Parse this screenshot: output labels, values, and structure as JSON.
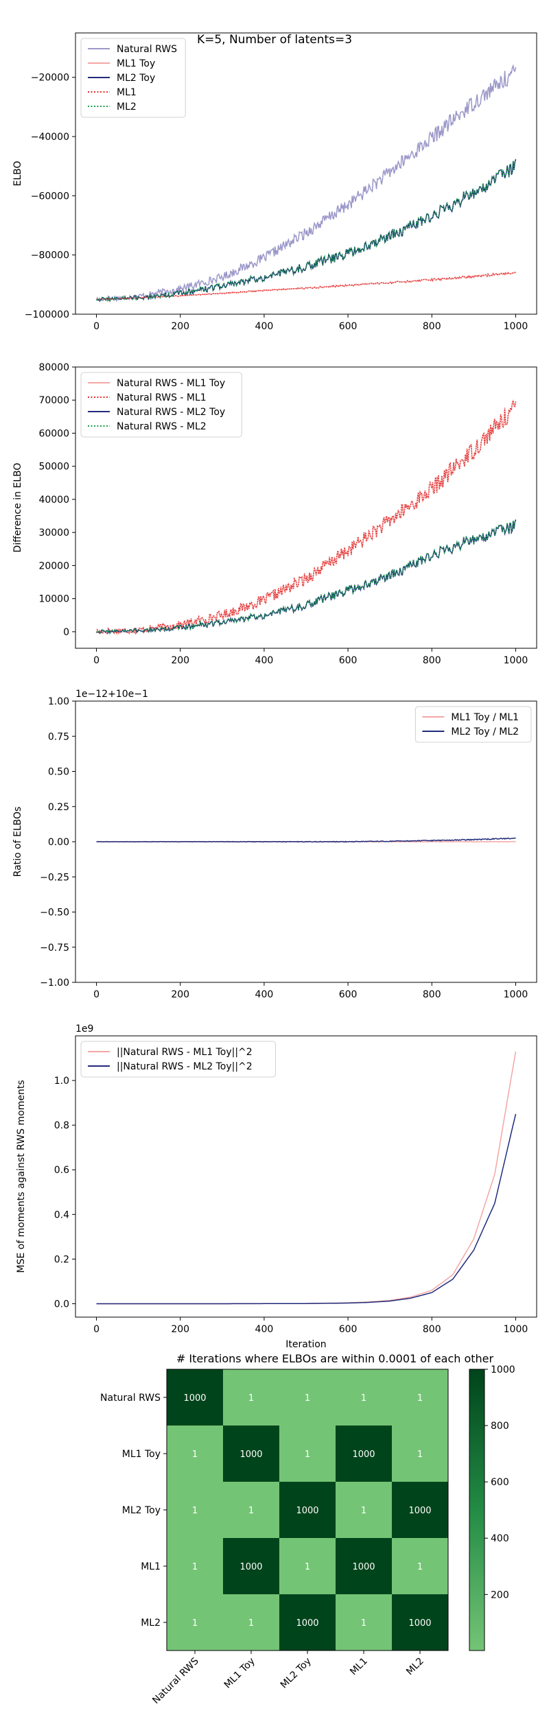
{
  "figure": {
    "suptitle": "K=5, Number of latents=3"
  },
  "chart_data": [
    {
      "type": "line",
      "title": "",
      "xlabel": "",
      "ylabel": "ELBO",
      "xlim": [
        -50,
        1050
      ],
      "ylim": [
        -100000,
        -5000
      ],
      "grid": false,
      "legend": "upper-left",
      "xticks": [
        0,
        200,
        400,
        600,
        800,
        1000
      ],
      "yticks": [
        -100000,
        -80000,
        -60000,
        -40000,
        -20000
      ],
      "ytick_labels": [
        "−100000",
        "−80000",
        "−60000",
        "−40000",
        "−20000"
      ],
      "x": [
        0,
        100,
        200,
        300,
        400,
        500,
        600,
        700,
        800,
        900,
        1000
      ],
      "series": [
        {
          "name": "Natural RWS",
          "color": "#9b97c9",
          "style": "solid",
          "noise": 3000,
          "values": [
            -95000,
            -94000,
            -91500,
            -87500,
            -81000,
            -72500,
            -63000,
            -52000,
            -40500,
            -28500,
            -18000
          ]
        },
        {
          "name": "ML1 Toy",
          "color": "#f4a6a6",
          "style": "solid",
          "noise": 400,
          "values": [
            -95000,
            -94500,
            -93800,
            -93000,
            -92000,
            -91200,
            -90300,
            -89400,
            -88400,
            -87300,
            -86000
          ]
        },
        {
          "name": "ML2 Toy",
          "color": "#1f2a7a",
          "style": "solid",
          "noise": 2500,
          "values": [
            -95000,
            -94500,
            -93000,
            -90500,
            -87500,
            -84000,
            -79500,
            -73500,
            -67000,
            -59000,
            -50000
          ]
        },
        {
          "name": "ML1",
          "color": "#e32b2b",
          "style": "dotted",
          "noise": 400,
          "values": [
            -95000,
            -94500,
            -93800,
            -93000,
            -92000,
            -91200,
            -90300,
            -89400,
            -88400,
            -87300,
            -86000
          ]
        },
        {
          "name": "ML2",
          "color": "#1a9e4a",
          "style": "dotted",
          "noise": 2500,
          "values": [
            -95000,
            -94500,
            -93000,
            -90500,
            -87500,
            -84000,
            -79500,
            -73500,
            -67000,
            -59000,
            -50000
          ]
        }
      ]
    },
    {
      "type": "line",
      "title": "",
      "xlabel": "",
      "ylabel": "Difference in ELBO",
      "xlim": [
        -50,
        1050
      ],
      "ylim": [
        -5000,
        80000
      ],
      "grid": false,
      "legend": "upper-left",
      "xticks": [
        0,
        200,
        400,
        600,
        800,
        1000
      ],
      "yticks": [
        0,
        10000,
        20000,
        30000,
        40000,
        50000,
        60000,
        70000,
        80000
      ],
      "ytick_labels": [
        "0",
        "10000",
        "20000",
        "30000",
        "40000",
        "50000",
        "60000",
        "70000",
        "80000"
      ],
      "x": [
        0,
        100,
        200,
        300,
        400,
        500,
        600,
        700,
        800,
        900,
        1000
      ],
      "series": [
        {
          "name": "Natural RWS - ML1 Toy",
          "color": "#f4a6a6",
          "style": "solid",
          "noise": 3000,
          "values": [
            0,
            500,
            2000,
            5000,
            9500,
            16000,
            24500,
            33500,
            43000,
            55000,
            68000
          ]
        },
        {
          "name": "Natural RWS - ML1",
          "color": "#e32b2b",
          "style": "dotted",
          "noise": 3000,
          "values": [
            0,
            500,
            2000,
            5000,
            9500,
            16000,
            24500,
            33500,
            43000,
            55000,
            68000
          ]
        },
        {
          "name": "Natural RWS - ML2 Toy",
          "color": "#1f2a7a",
          "style": "solid",
          "noise": 2000,
          "values": [
            0,
            300,
            1200,
            2800,
            5000,
            8000,
            12500,
            17000,
            23000,
            28000,
            32000
          ]
        },
        {
          "name": "Natural RWS - ML2",
          "color": "#1a9e4a",
          "style": "dotted",
          "noise": 2000,
          "values": [
            0,
            300,
            1200,
            2800,
            5000,
            8000,
            12500,
            17000,
            23000,
            28000,
            32000
          ]
        }
      ]
    },
    {
      "type": "line",
      "title": "",
      "xlabel": "",
      "ylabel": "Ratio of ELBOs",
      "offset_label": "1e−12+10e−1",
      "xlim": [
        -50,
        1050
      ],
      "ylim": [
        -1.0,
        1.0
      ],
      "grid": false,
      "legend": "upper-right",
      "xticks": [
        0,
        200,
        400,
        600,
        800,
        1000
      ],
      "yticks": [
        -1.0,
        -0.75,
        -0.5,
        -0.25,
        0.0,
        0.25,
        0.5,
        0.75,
        1.0
      ],
      "ytick_labels": [
        "−1.00",
        "−0.75",
        "−0.50",
        "−0.25",
        "0.00",
        "0.25",
        "0.50",
        "0.75",
        "1.00"
      ],
      "x": [
        0,
        100,
        200,
        300,
        400,
        500,
        600,
        700,
        800,
        900,
        1000
      ],
      "series": [
        {
          "name": "ML1 Toy / ML1",
          "color": "#f4a6a6",
          "style": "solid",
          "noise": 0.002,
          "values": [
            0,
            0,
            0,
            0,
            0,
            0,
            0,
            0,
            0,
            0,
            0
          ]
        },
        {
          "name": "ML2 Toy / ML2",
          "color": "#1f2a7a",
          "style": "solid",
          "noise": 0.004,
          "values": [
            0,
            0,
            0,
            0,
            0,
            0,
            0,
            0.003,
            0.008,
            0.015,
            0.025
          ]
        }
      ]
    },
    {
      "type": "line",
      "title": "",
      "xlabel": "Iteration",
      "ylabel": "MSE of moments against RWS moments",
      "offset_label": "1e9",
      "xlim": [
        -50,
        1050
      ],
      "ylim": [
        -0.06,
        1.2
      ],
      "grid": false,
      "legend": "upper-left",
      "xticks": [
        0,
        200,
        400,
        600,
        800,
        1000
      ],
      "yticks": [
        0.0,
        0.2,
        0.4,
        0.6,
        0.8,
        1.0
      ],
      "ytick_labels": [
        "0.0",
        "0.2",
        "0.4",
        "0.6",
        "0.8",
        "1.0"
      ],
      "x": [
        0,
        100,
        200,
        300,
        400,
        500,
        600,
        650,
        700,
        750,
        800,
        850,
        900,
        950,
        1000
      ],
      "series": [
        {
          "name": "||Natural RWS - ML1 Toy||^2",
          "color": "#f4a6a6",
          "style": "solid",
          "noise": 0,
          "values": [
            0,
            0,
            0,
            0,
            0.0005,
            0.001,
            0.004,
            0.008,
            0.015,
            0.03,
            0.06,
            0.13,
            0.29,
            0.58,
            1.13
          ]
        },
        {
          "name": "||Natural RWS - ML2 Toy||^2",
          "color": "#1f2a7a",
          "style": "solid",
          "noise": 0,
          "values": [
            0,
            0,
            0,
            0,
            0.0004,
            0.001,
            0.003,
            0.006,
            0.012,
            0.025,
            0.05,
            0.11,
            0.24,
            0.45,
            0.85
          ]
        }
      ]
    },
    {
      "type": "heatmap",
      "title": "# Iterations where ELBOs are within 0.0001 of each other",
      "rows": [
        "Natural RWS",
        "ML1 Toy",
        "ML2 Toy",
        "ML1",
        "ML2"
      ],
      "cols": [
        "Natural RWS",
        "ML1 Toy",
        "ML2 Toy",
        "ML1",
        "ML2"
      ],
      "values": [
        [
          1000,
          1,
          1,
          1,
          1
        ],
        [
          1,
          1000,
          1,
          1000,
          1
        ],
        [
          1,
          1,
          1000,
          1,
          1000
        ],
        [
          1,
          1000,
          1,
          1000,
          1
        ],
        [
          1,
          1,
          1000,
          1,
          1000
        ]
      ],
      "vmin": 1,
      "vmax": 1000,
      "colormap": "Greens",
      "colorbar_ticks": [
        200,
        400,
        600,
        800,
        1000
      ]
    }
  ]
}
